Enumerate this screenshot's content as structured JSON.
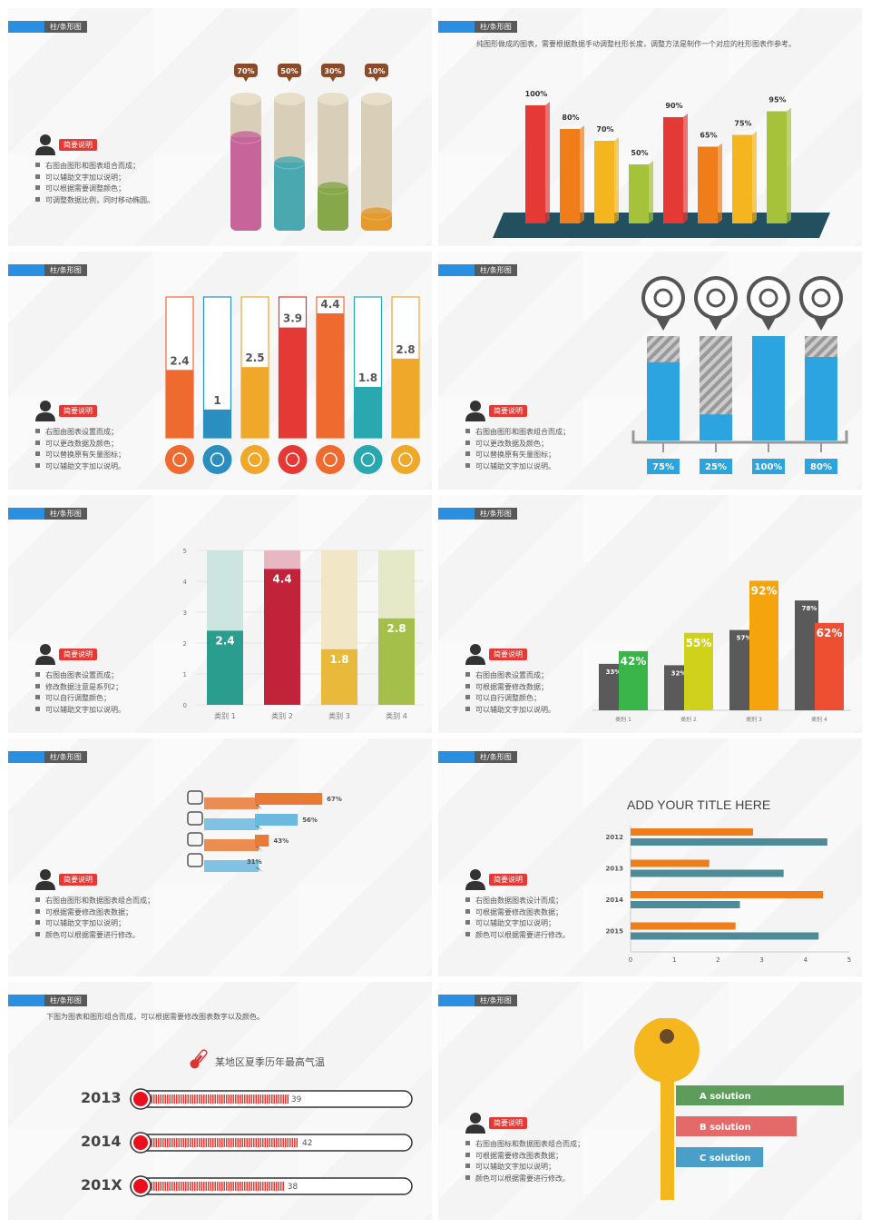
{
  "slide_tag": "柱/条形图",
  "note_badge": "简要说明",
  "s1": {
    "notes": [
      "右图由图形和图表组合而成；",
      "可以辅助文字加以说明；",
      "可以根据需要调整颜色；",
      "可调整数据比例，同时移动椭圆。"
    ],
    "bars": [
      {
        "label": "70%",
        "value": 70,
        "color": "#c7659a",
        "tag": "#8b4a2a"
      },
      {
        "label": "50%",
        "value": 50,
        "color": "#4aa9b0",
        "tag": "#8b4a2a"
      },
      {
        "label": "30%",
        "value": 30,
        "color": "#86a84a",
        "tag": "#8b4a2a"
      },
      {
        "label": "10%",
        "value": 10,
        "color": "#e59a2e",
        "tag": "#8b4a2a"
      }
    ]
  },
  "s2": {
    "caption": "纯图形做成的图表，需要根据数据手动调整柱形长度，调整方法是制作一个对应的柱形图表作参考。",
    "bars": [
      {
        "label": "100%",
        "value": 100,
        "color": "#e53935"
      },
      {
        "label": "80%",
        "value": 80,
        "color": "#ef7d1a"
      },
      {
        "label": "70%",
        "value": 70,
        "color": "#f5b51e"
      },
      {
        "label": "50%",
        "value": 50,
        "color": "#a5c23a"
      },
      {
        "label": "90%",
        "value": 90,
        "color": "#e53935"
      },
      {
        "label": "65%",
        "value": 65,
        "color": "#ef7d1a"
      },
      {
        "label": "75%",
        "value": 75,
        "color": "#f5b51e"
      },
      {
        "label": "95%",
        "value": 95,
        "color": "#a5c23a"
      }
    ]
  },
  "s3": {
    "notes": [
      "右图由图表设置而成；",
      "可以更改数据及颜色；",
      "可以替换原有矢量图标；",
      "可以辅助文字加以说明。"
    ],
    "bars": [
      {
        "label": "2.4",
        "value": 2.4,
        "color": "#ef6a2e"
      },
      {
        "label": "1",
        "value": 1,
        "color": "#2a8fc0"
      },
      {
        "label": "2.5",
        "value": 2.5,
        "color": "#f0a82a"
      },
      {
        "label": "3.9",
        "value": 3.9,
        "color": "#e53935"
      },
      {
        "label": "4.4",
        "value": 4.4,
        "color": "#ef6a2e"
      },
      {
        "label": "1.8",
        "value": 1.8,
        "color": "#2aa8b0"
      },
      {
        "label": "2.8",
        "value": 2.8,
        "color": "#f0a82a"
      }
    ],
    "icons": [
      "calculator-icon",
      "clock-icon",
      "card-icon",
      "chart-icon",
      "bell-icon",
      "home-icon",
      "cart-icon"
    ]
  },
  "s4": {
    "notes": [
      "右图由图形和图表组合而成；",
      "可以更改数据及颜色；",
      "可以替换原有矢量图标；",
      "可以辅助文字加以说明。"
    ],
    "bars": [
      {
        "label": "75%",
        "value": 75,
        "icon": "search-icon"
      },
      {
        "label": "25%",
        "value": 25,
        "icon": "lock-icon"
      },
      {
        "label": "100%",
        "value": 100,
        "icon": "mail-icon"
      },
      {
        "label": "80%",
        "value": 80,
        "icon": "cart-icon"
      }
    ]
  },
  "s5": {
    "notes": [
      "右图由图表设置而成；",
      "修改数据注意是系列2；",
      "可以自行调整颜色；",
      "可以辅助文字加以说明。"
    ],
    "chart_data": {
      "type": "bar",
      "categories": [
        "类别 1",
        "类别 2",
        "类别 3",
        "类别 4"
      ],
      "values": [
        2.4,
        4.4,
        1.8,
        2.8
      ],
      "ylim": [
        0,
        5
      ],
      "yticks": [
        "0",
        "1",
        "2",
        "3",
        "4",
        "5"
      ],
      "colors": [
        "#2a9d8f",
        "#c0233a",
        "#e8b93a",
        "#a5c04a"
      ],
      "bg": [
        "#cce5e1",
        "#e8b8c2",
        "#f1e6c6",
        "#e6e9c8"
      ],
      "labels": [
        "2.4",
        "4.4",
        "1.8",
        "2.8"
      ]
    }
  },
  "s6": {
    "notes": [
      "右图由图表设置而成；",
      "可根据需要修改数据；",
      "可以自行调整颜色；",
      "可以辅助文字加以说明。"
    ],
    "chart_data": {
      "type": "bar",
      "categories": [
        "类别 1",
        "类别 2",
        "类别 3",
        "类别 4"
      ],
      "series": [
        {
          "values": [
            33,
            32,
            57,
            78
          ],
          "color": "#5a5a5a",
          "labels": [
            "33%",
            "32%",
            "57%",
            "78%"
          ]
        },
        {
          "values": [
            42,
            55,
            92,
            62
          ],
          "colors": [
            "#3ab54a",
            "#cfd21a",
            "#f5a40d",
            "#ee4e32"
          ],
          "labels": [
            "42%",
            "55%",
            "92%",
            "62%"
          ]
        }
      ]
    }
  },
  "s7": {
    "notes": [
      "右图由图形和数据图表组合而成；",
      "可根据需要修改图表数据；",
      "可以辅助文字加以说明；",
      "颜色可以根据需要进行修改。"
    ],
    "bars": [
      {
        "label": "67%",
        "value": 67,
        "color": "#e97a35",
        "icon": "train-icon"
      },
      {
        "label": "56%",
        "value": 56,
        "color": "#6ab9e0",
        "icon": "car-icon"
      },
      {
        "label": "43%",
        "value": 43,
        "color": "#e97a35",
        "icon": "bicycle-icon"
      },
      {
        "label": "31%",
        "value": 31,
        "color": "#6ab9e0",
        "icon": "footprint-icon"
      }
    ]
  },
  "s8": {
    "title": "ADD YOUR TITLE HERE",
    "notes": [
      "右图由数据图表设计而成；",
      "可根据需要修改图表数据；",
      "可以辅助文字加以说明；",
      "颜色可以根据需要进行修改。"
    ],
    "chart_data": {
      "type": "bar",
      "categories": [
        "2012",
        "2013",
        "2014",
        "2015"
      ],
      "series": [
        {
          "values": [
            2.8,
            1.8,
            4.4,
            2.4
          ],
          "color": "#ef7d1a"
        },
        {
          "values": [
            4.5,
            3.5,
            2.5,
            4.3
          ],
          "color": "#4e8b98"
        }
      ],
      "xlim": [
        0,
        5
      ],
      "xticks": [
        "0",
        "1",
        "2",
        "3",
        "4",
        "5"
      ]
    }
  },
  "s9": {
    "caption": "下图为图表和图形组合而成，可以根据需要修改图表数字以及颜色。",
    "title": "某地区夏季历年最高气温",
    "rows": [
      {
        "year": "2013",
        "value": 39,
        "label": "39"
      },
      {
        "year": "2014",
        "value": 42,
        "label": "42"
      },
      {
        "year": "201X",
        "value": 38,
        "label": "38"
      }
    ],
    "max": 50
  },
  "s10": {
    "notes": [
      "右图由图标和数据图表组合而成；",
      "可根据需要修改图表数据；",
      "可以辅助文字加以说明；",
      "颜色可以根据需要进行修改。"
    ],
    "bars": [
      {
        "label": "A solution",
        "value": 100,
        "color": "#5d9c5a"
      },
      {
        "label": "B solution",
        "value": 72,
        "color": "#e46a6a"
      },
      {
        "label": "C solution",
        "value": 52,
        "color": "#4a9fc8"
      }
    ]
  }
}
